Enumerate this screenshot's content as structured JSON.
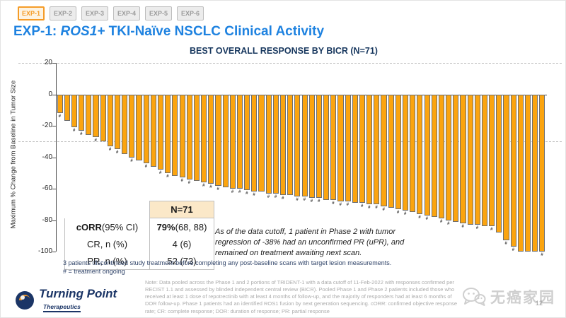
{
  "tabs": [
    {
      "label": "EXP-1",
      "active": true
    },
    {
      "label": "EXP-2",
      "active": false
    },
    {
      "label": "EXP-3",
      "active": false
    },
    {
      "label": "EXP-4",
      "active": false
    },
    {
      "label": "EXP-5",
      "active": false
    },
    {
      "label": "EXP-6",
      "active": false
    }
  ],
  "title": {
    "part1": "EXP-1: ",
    "part2": "ROS1+",
    "part3": " TKI-Naïve NSCLC Clinical Activity"
  },
  "chart_data": {
    "type": "bar",
    "title": "BEST OVERALL RESPONSE BY BICR (N=71)",
    "ylabel": "Maximum % Change from Baseline in Tumor Size",
    "ylim": [
      -100,
      20
    ],
    "yticks": [
      20,
      0,
      -20,
      -40,
      -60,
      -80,
      -100
    ],
    "reference_dashed_lines": [
      20,
      -30
    ],
    "bar_color": "#FBA40F",
    "bar_border_color": "#6E6E6E",
    "marker_symbol": "#",
    "marker_meaning": "treatment ongoing",
    "values": [
      -12,
      -17,
      -21,
      -23,
      -26,
      -27,
      -30,
      -33,
      -35,
      -38,
      -40,
      -42,
      -44,
      -46,
      -48,
      -50,
      -52,
      -53,
      -54,
      -55,
      -56,
      -57,
      -58,
      -59,
      -60,
      -60,
      -61,
      -62,
      -62,
      -63,
      -63,
      -64,
      -64,
      -65,
      -65,
      -66,
      -66,
      -67,
      -67,
      -68,
      -68,
      -69,
      -69,
      -70,
      -70,
      -71,
      -72,
      -73,
      -74,
      -75,
      -76,
      -77,
      -78,
      -79,
      -80,
      -81,
      -82,
      -83,
      -83,
      -84,
      -84,
      -88,
      -93,
      -97,
      -100,
      -100,
      -100,
      -100
    ],
    "ongoing": [
      1,
      0,
      1,
      1,
      0,
      1,
      0,
      1,
      1,
      0,
      1,
      0,
      1,
      0,
      1,
      1,
      0,
      1,
      1,
      0,
      1,
      1,
      1,
      0,
      1,
      1,
      1,
      1,
      0,
      1,
      1,
      1,
      0,
      1,
      1,
      1,
      1,
      0,
      1,
      1,
      1,
      0,
      1,
      1,
      1,
      1,
      0,
      1,
      1,
      0,
      1,
      1,
      0,
      1,
      1,
      0,
      1,
      0,
      1,
      0,
      1,
      0,
      1,
      1,
      0,
      0,
      0,
      1
    ]
  },
  "response_table": {
    "header": "N=71",
    "rows": [
      {
        "label_bold": "cORR",
        "label_rest": " (95% CI)",
        "value_bold": "79%",
        "value_rest": " (68, 88)"
      },
      {
        "label": "CR, n (%)",
        "value": "4 (6)"
      },
      {
        "label": "PR, n (%)",
        "value": "52 (73)"
      }
    ]
  },
  "annotation": "As of the data cutoff, 1 patient in Phase 2 with tumor regression of -38% had an unconfirmed PR (uPR), and remained on treatment awaiting next scan.",
  "footnotes": {
    "line1": "3 patients discontinued study treatment before completing any post-baseline scans with target lesion measurements.",
    "line2": "# = treatment ongoing"
  },
  "note": "Note: Data pooled across the Phase 1 and 2 portions of TRIDENT-1 with a data cutoff of 11-Feb-2022 with responses confirmed per RECIST 1.1 and assessed by blinded independent central review (BICR). Pooled Phase 1 and Phase 2 patients included those who received at least 1 dose of repotrectinib with at least 4 months of follow-up, and the majority of responders had at least 6 months of DOR follow-up. Phase 1 patients had an identified ROS1 fusion by next generation sequencing. cORR: confirmed objective response rate; CR: complete response; DOR: duration of response; PR: partial response",
  "footer": {
    "logo_main": "Turning Point",
    "logo_sub": "Therapeutics",
    "watermark": "无癌家园",
    "page_number": "12"
  },
  "colors": {
    "title_blue": "#1E82E0",
    "navy": "#17375E",
    "bar_orange": "#FBA40F",
    "active_tab_orange": "#F59C28",
    "table_header_bg": "#FBE8C8",
    "footnote_navy": "#2F4368",
    "note_gray": "#ABABAB",
    "watermark_gray": "#CFCFCF"
  }
}
